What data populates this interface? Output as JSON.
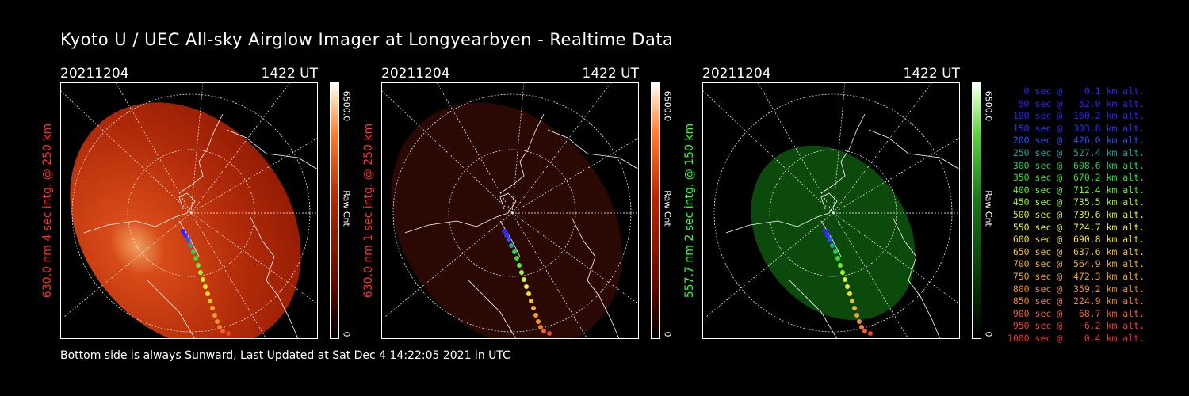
{
  "title": "Kyoto U / UEC All-sky Airglow Imager at Longyearbyen - Realtime Data",
  "footer": "Bottom side is always Sunward, Last Updated at Sat Dec  4 14:22:05 2021 in UTC",
  "panels": [
    {
      "date": "20211204",
      "time": "1422 UT",
      "ylabel": "630.0 nm 4 sec intg. @ 250 km",
      "ylabel_color": "#ff3020",
      "colorbar_max": "6500.0",
      "colorbar_label": "Raw Cnt",
      "colorbar_min": "0",
      "colormap": "red",
      "brightness": "bright"
    },
    {
      "date": "20211204",
      "time": "1422 UT",
      "ylabel": "630.0 nm 1 sec intg. @ 250 km",
      "ylabel_color": "#ff3020",
      "colorbar_max": "6500.0",
      "colorbar_label": "Raw Cnt",
      "colorbar_min": "0",
      "colormap": "red",
      "brightness": "dim"
    },
    {
      "date": "20211204",
      "time": "1422 UT",
      "ylabel": "557.7 nm 2 sec intg. @ 150 km",
      "ylabel_color": "#30ff30",
      "colorbar_max": "6500.0",
      "colorbar_label": "Raw Cnt",
      "colorbar_min": "0",
      "colormap": "green",
      "brightness": "medium"
    }
  ],
  "legend": [
    {
      "text": "   0 sec @    0.1 km alt.",
      "color": "#3020ff"
    },
    {
      "text": "  50 sec @   52.0 km alt.",
      "color": "#3020ff"
    },
    {
      "text": " 100 sec @  160.2 km alt.",
      "color": "#3020ff"
    },
    {
      "text": " 150 sec @  303.8 km alt.",
      "color": "#3030ff"
    },
    {
      "text": " 200 sec @  426.0 km alt.",
      "color": "#3050ff"
    },
    {
      "text": " 250 sec @  527.4 km alt.",
      "color": "#20a0a0"
    },
    {
      "text": " 300 sec @  608.6 km alt.",
      "color": "#20d060"
    },
    {
      "text": " 350 sec @  670.2 km alt.",
      "color": "#30e030"
    },
    {
      "text": " 400 sec @  712.4 km alt.",
      "color": "#60f030"
    },
    {
      "text": " 450 sec @  735.5 km alt.",
      "color": "#a0f030"
    },
    {
      "text": " 500 sec @  739.6 km alt.",
      "color": "#d0f030"
    },
    {
      "text": " 550 sec @  724.7 km alt.",
      "color": "#f0f030"
    },
    {
      "text": " 600 sec @  690.8 km alt.",
      "color": "#f0e030"
    },
    {
      "text": " 650 sec @  637.6 km alt.",
      "color": "#f0c030"
    },
    {
      "text": " 700 sec @  564.9 km alt.",
      "color": "#f0b030"
    },
    {
      "text": " 750 sec @  472.3 km alt.",
      "color": "#f0a030"
    },
    {
      "text": " 800 sec @  359.2 km alt.",
      "color": "#f09030"
    },
    {
      "text": " 850 sec @  224.9 km alt.",
      "color": "#f08030"
    },
    {
      "text": " 900 sec @   68.7 km alt.",
      "color": "#f06030"
    },
    {
      "text": " 950 sec @    6.2 km alt.",
      "color": "#f04030"
    },
    {
      "text": "1000 sec @    0.4 km alt.",
      "color": "#f03030"
    }
  ]
}
